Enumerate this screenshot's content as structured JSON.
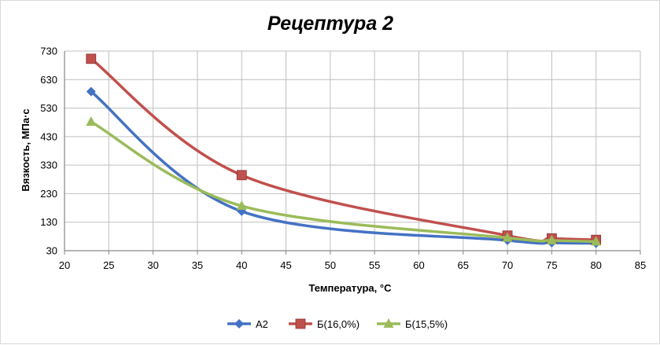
{
  "chart_data": {
    "type": "line",
    "title": "Рецептура 2",
    "xlabel": "Температура, °С",
    "ylabel": "Вязкость, МПа·с",
    "xlim": [
      20,
      85
    ],
    "ylim": [
      30,
      730
    ],
    "xticks": [
      20,
      25,
      30,
      35,
      40,
      45,
      50,
      55,
      60,
      65,
      70,
      75,
      80,
      85
    ],
    "yticks": [
      30,
      130,
      230,
      330,
      430,
      530,
      630,
      730
    ],
    "grid": true,
    "legend": "bottom",
    "series": [
      {
        "name": "А2",
        "color": "#4472C4",
        "marker": "diamond",
        "x": [
          23,
          40,
          70,
          75,
          80
        ],
        "y": [
          588,
          168,
          66,
          58,
          56
        ]
      },
      {
        "name": "Б(16,0%)",
        "color": "#C0504D",
        "marker": "square",
        "x": [
          23,
          40,
          70,
          75,
          80
        ],
        "y": [
          703,
          295,
          83,
          73,
          68
        ]
      },
      {
        "name": "Б(15,5%)",
        "color": "#9BBB59",
        "marker": "triangle",
        "x": [
          23,
          40,
          70,
          75,
          80
        ],
        "y": [
          482,
          187,
          75,
          66,
          62
        ]
      }
    ]
  }
}
